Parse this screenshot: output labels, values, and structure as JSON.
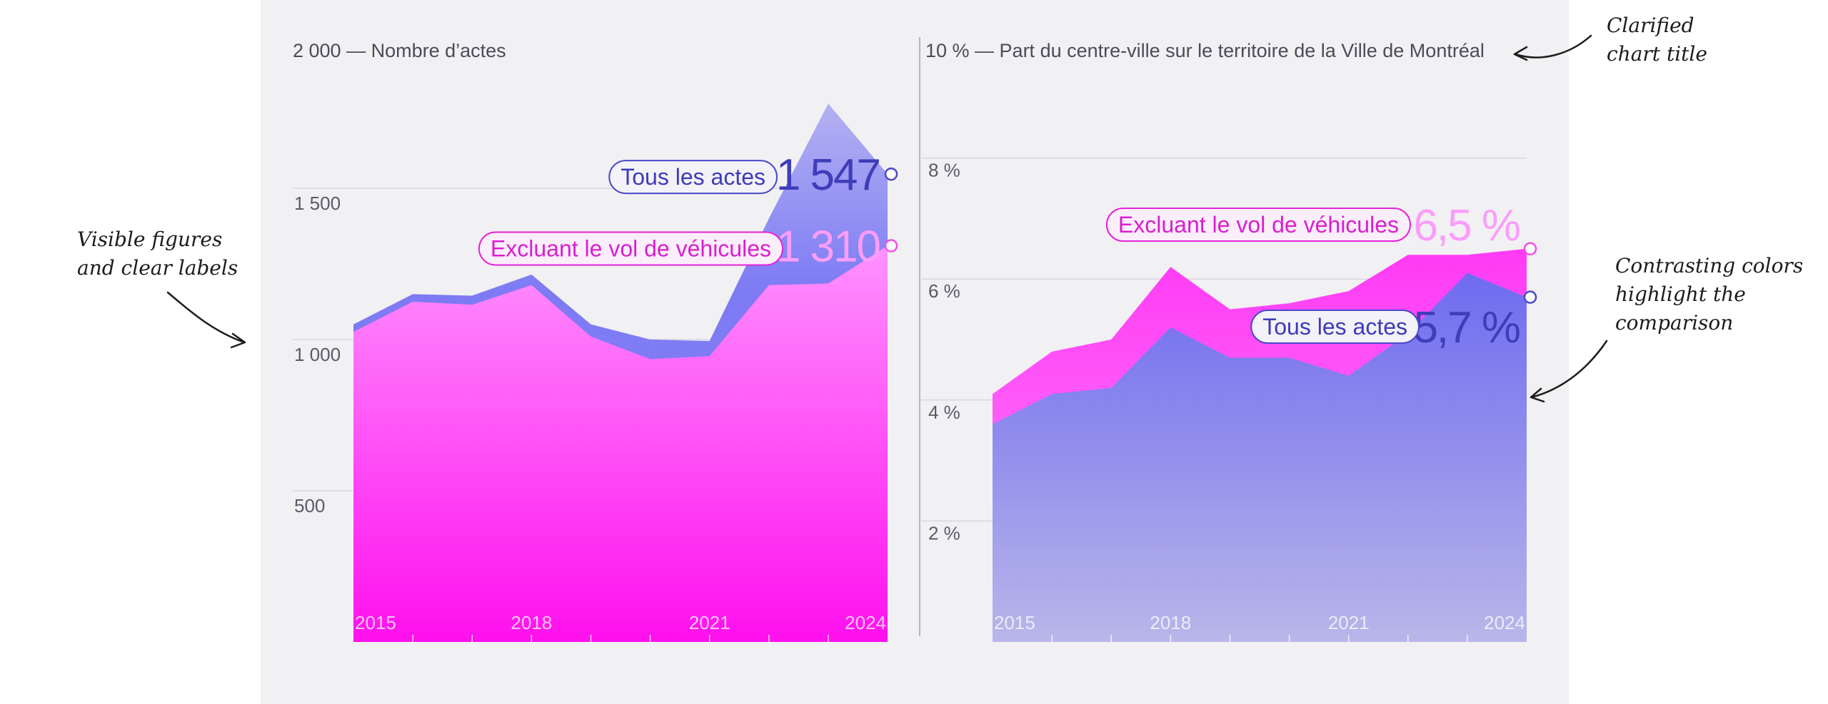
{
  "annotations": {
    "left": [
      "Visible figures",
      "and clear labels"
    ],
    "top_right": [
      "Clarified",
      "chart title"
    ],
    "right": [
      "Contrasting colors",
      "highlight the",
      "comparison"
    ]
  },
  "colors": {
    "blue_top": "#a6a4f4",
    "blue_bottom": "#7a76f2",
    "pink_top": "#ff8cff",
    "pink_bottom": "#ff10ee",
    "blue_label": "#3d3bb8",
    "pink_label": "#d91fcf"
  },
  "chart_data": [
    {
      "type": "area",
      "title": "2 000 — Nombre d’actes",
      "x": [
        2015,
        2016,
        2017,
        2018,
        2019,
        2020,
        2021,
        2022,
        2023,
        2024
      ],
      "x_tick_labels": [
        "2015",
        "2018",
        "2021",
        "2024"
      ],
      "y_tick_labels": [
        "1 500",
        "1 000",
        "500"
      ],
      "y_ticks": [
        1500,
        1000,
        500
      ],
      "ylim": [
        0,
        2000
      ],
      "series": [
        {
          "name": "Tous les actes",
          "values": [
            1050,
            1150,
            1145,
            1215,
            1050,
            1000,
            995,
            1400,
            1780,
            1547
          ],
          "end_label": "1 547",
          "color": "blue"
        },
        {
          "name": "Excluant le vol de véhicules",
          "values": [
            1025,
            1125,
            1115,
            1180,
            1010,
            935,
            945,
            1180,
            1185,
            1310
          ],
          "end_label": "1 310",
          "color": "pink"
        }
      ]
    },
    {
      "type": "area",
      "title": "10 % — Part du centre-ville sur le territoire de la Ville de Montréal",
      "x": [
        2015,
        2016,
        2017,
        2018,
        2019,
        2020,
        2021,
        2022,
        2023,
        2024
      ],
      "x_tick_labels": [
        "2015",
        "2018",
        "2021",
        "2024"
      ],
      "y_tick_labels": [
        "8 %",
        "6 %",
        "4 %",
        "2 %"
      ],
      "y_ticks": [
        8,
        6,
        4,
        2
      ],
      "ylim": [
        0,
        10
      ],
      "series": [
        {
          "name": "Excluant le vol de véhicules",
          "values": [
            4.1,
            4.8,
            5.0,
            6.2,
            5.5,
            5.6,
            5.8,
            6.4,
            6.4,
            6.5
          ],
          "end_label": "6,5 %",
          "color": "pink"
        },
        {
          "name": "Tous les actes",
          "values": [
            3.6,
            4.1,
            4.2,
            5.2,
            4.7,
            4.7,
            4.4,
            5.1,
            6.1,
            5.7
          ],
          "end_label": "5,7 %",
          "color": "blue"
        }
      ]
    }
  ]
}
